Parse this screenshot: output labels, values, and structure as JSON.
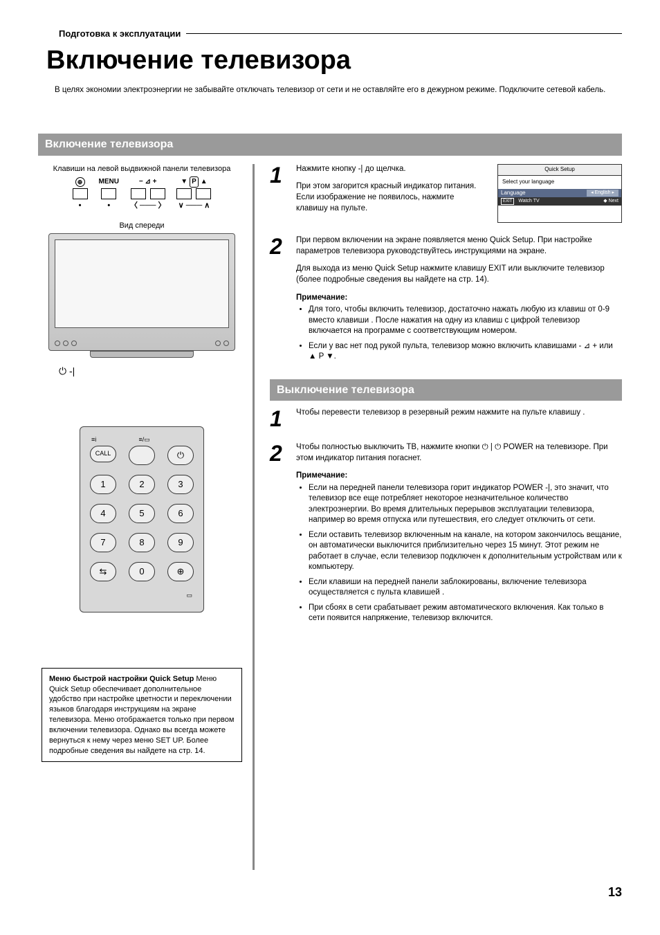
{
  "page": {
    "pretitle": "Подготовка к эксплуатации",
    "title": "Включение телевизора",
    "intro": "В целях экономии электроэнергии не забывайте отключать телевизор от сети и не оставляйте его в дежурном режиме. Подключите сетевой кабель.",
    "page_number": "13"
  },
  "section_on": {
    "heading": "Включение телевизора",
    "left": {
      "caption_panel": "Клавиши на левой выдвижной панели телевизора",
      "menu_label": "MENU",
      "p_label": "P",
      "front_label": "Вид спереди",
      "power_symbol": "⏻ -|"
    },
    "remote": {
      "call": "CALL",
      "digits": [
        "1",
        "2",
        "3",
        "4",
        "5",
        "6",
        "7",
        "8",
        "9",
        "0"
      ]
    },
    "infobox": {
      "title": "Меню быстрой настройки Quick Setup",
      "body": "Меню Quick Setup обеспечивает дополнительное удобство при настройке цветности и переключении языков благодаря инструкциям на экране телевизора. Меню отображается только при первом включении телевизора. Однако вы всегда можете вернуться к нему через меню SET UP. Более подробные сведения вы найдете на стр. 14."
    },
    "step1": {
      "num": "1",
      "p1": "Нажмите кнопку     -| до щелчка.",
      "p2": "При этом загорится красный индикатор питания. Если изображение не появилось, нажмите клавишу     на пульте.",
      "osd": {
        "title": "Quick Setup",
        "subtitle": "Select your language",
        "lang_label": "Language",
        "lang_value": "English",
        "exit": "EXIT",
        "watch": "Watch TV",
        "next": "Next"
      }
    },
    "step2": {
      "num": "2",
      "p1": "При первом включении на экране появляется меню Quick Setup. При настройке параметров телевизора руководствуйтесь инструкциями на экране.",
      "p2": "Для выхода из меню Quick Setup нажмите клавишу EXIT или выключите телевизор (более подробные сведения вы найдете на стр. 14).",
      "note_h": "Примечание:",
      "notes": [
        "Для того, чтобы включить телевизор, достаточно нажать любую из клавиш от 0-9 вместо клавиши    . После нажатия на одну из клавиш с цифрой телевизор включается на программе с соответствующим номером.",
        "Если у вас нет под рукой пульта, телевизор можно включить клавишами - ⊿ + или ▲ P ▼."
      ]
    }
  },
  "section_off": {
    "heading": "Выключение телевизора",
    "step1": {
      "num": "1",
      "p1": "Чтобы перевести телевизор в резервный режим нажмите на пульте клавишу    ."
    },
    "step2": {
      "num": "2",
      "p1": "Чтобы полностью выключить ТВ, нажмите кнопки ⏻ | ⏻ POWER на телевизоре. При этом индикатор питания погаснет."
    },
    "note_h": "Примечание:",
    "notes": [
      "Если на передней панели телевизора горит индикатор POWER     -|, это значит, что телевизор все еще потребляет некоторое незначительное количество электроэнергии. Во время длительных перерывов эксплуатации телевизора, например во время отпуска или путешествия, его следует отключить от сети.",
      "Если оставить телевизор включенным на канале, на котором закончилось вещание, он автоматически выключится приблизительно через 15 минут. Этот режим не работает в случае, если телевизор подключен к дополнительным устройствам или к компьютеру.",
      "Если клавиши на передней панели заблокированы, включение телевизора осуществляется с пульта клавишей    .",
      "При сбоях в сети срабатывает режим автоматического включения. Как только в сети появится напряжение, телевизор включится."
    ]
  },
  "colors": {
    "section_bar_bg": "#9a9a9a",
    "section_bar_fg": "#ffffff",
    "vrule": "#888888",
    "osd_row_bg": "#5a6a8a",
    "osd_footer_bg": "#333333",
    "remote_bg": "#d8d8d8"
  }
}
